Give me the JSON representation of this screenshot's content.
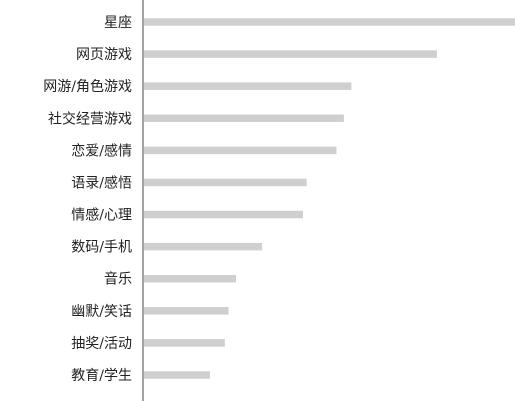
{
  "chart_data": {
    "type": "bar",
    "orientation": "horizontal",
    "title": "",
    "xlabel": "",
    "ylabel": "",
    "grid": false,
    "legend": "none",
    "color": "#cfcfcf",
    "xlim": [
      0,
      100
    ],
    "categories": [
      "星座",
      "网页游戏",
      "网游/角色游戏",
      "社交经营游戏",
      "恋爱/感情",
      "语录/感悟",
      "情感/心理",
      "数码/手机",
      "音乐",
      "幽默/笑话",
      "抽奖/活动",
      "教育/学生"
    ],
    "values": [
      100,
      79,
      56,
      54,
      52,
      44,
      43,
      32,
      25,
      23,
      22,
      18
    ]
  }
}
